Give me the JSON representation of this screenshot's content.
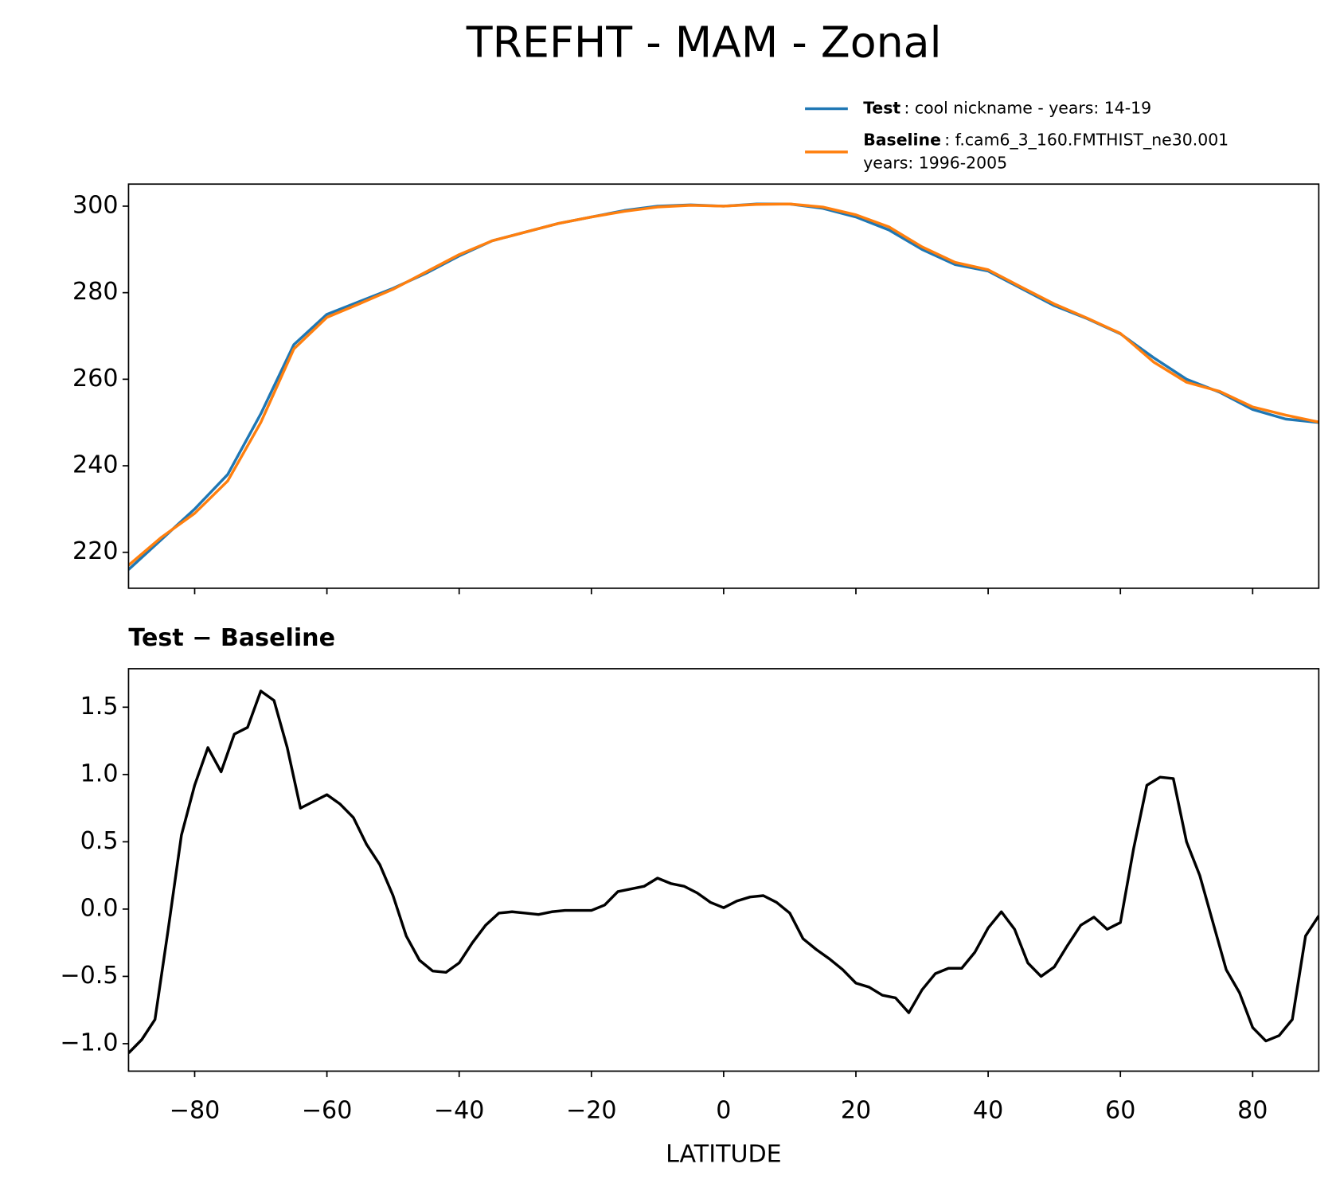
{
  "title": "TREFHT - MAM - Zonal",
  "chart_data": [
    {
      "type": "line",
      "x": [
        -90,
        -85,
        -80,
        -75,
        -70,
        -65,
        -60,
        -55,
        -50,
        -45,
        -40,
        -35,
        -30,
        -25,
        -20,
        -15,
        -10,
        -5,
        0,
        5,
        10,
        15,
        20,
        25,
        30,
        35,
        40,
        45,
        50,
        55,
        60,
        65,
        70,
        75,
        80,
        85,
        90
      ],
      "series": [
        {
          "name": "Test",
          "description": [
            ": cool nickname - years: 14-19"
          ],
          "color": "#1f77b4",
          "values": [
            216,
            223,
            230,
            238,
            252,
            268,
            275,
            278,
            281,
            284.5,
            288.5,
            292,
            294,
            296,
            297.5,
            299,
            300,
            300.3,
            300,
            300.5,
            300.5,
            299.5,
            297.5,
            294.5,
            290,
            286.5,
            285,
            281,
            277,
            274,
            270.5,
            265,
            260,
            257,
            253,
            250.8,
            250
          ]
        },
        {
          "name": "Baseline",
          "description": [
            ": f.cam6_3_160.FMTHIST_ne30.001",
            "years: 1996-2005"
          ],
          "color": "#ff7f0e",
          "values": [
            217,
            223.5,
            229,
            236.5,
            250,
            267,
            274.3,
            277.5,
            280.8,
            284.8,
            288.8,
            292,
            294,
            296,
            297.5,
            298.8,
            299.8,
            300.2,
            300,
            300.4,
            300.5,
            299.8,
            298,
            295.2,
            290.6,
            287,
            285.3,
            281.3,
            277.4,
            274.1,
            270.6,
            264,
            259.3,
            257.2,
            253.6,
            251.7,
            250.1
          ]
        }
      ],
      "xlim": [
        -90,
        90
      ],
      "xticks": [
        -80,
        -60,
        -40,
        -20,
        0,
        20,
        40,
        60,
        80
      ],
      "ylim": [
        211.7,
        305.1
      ],
      "yticks": [
        220,
        240,
        260,
        280,
        300
      ]
    },
    {
      "type": "line",
      "title": "Test − Baseline",
      "xlabel": "LATITUDE",
      "x": [
        -90,
        -88,
        -86,
        -84,
        -82,
        -80,
        -78,
        -76,
        -74,
        -72,
        -70,
        -68,
        -66,
        -64,
        -62,
        -60,
        -58,
        -56,
        -54,
        -52,
        -50,
        -48,
        -46,
        -44,
        -42,
        -40,
        -38,
        -36,
        -34,
        -32,
        -30,
        -28,
        -26,
        -24,
        -22,
        -20,
        -18,
        -16,
        -14,
        -12,
        -10,
        -8,
        -6,
        -4,
        -2,
        0,
        2,
        4,
        6,
        8,
        10,
        12,
        14,
        16,
        18,
        20,
        22,
        24,
        26,
        28,
        30,
        32,
        34,
        36,
        38,
        40,
        42,
        44,
        46,
        48,
        50,
        52,
        54,
        56,
        58,
        60,
        62,
        64,
        66,
        68,
        70,
        72,
        74,
        76,
        78,
        80,
        82,
        84,
        86,
        88,
        90
      ],
      "series": [
        {
          "name": "Test − Baseline",
          "color": "#000000",
          "values": [
            -1.07,
            -0.97,
            -0.82,
            -0.15,
            0.55,
            0.92,
            1.2,
            1.02,
            1.3,
            1.35,
            1.62,
            1.55,
            1.2,
            0.75,
            0.8,
            0.85,
            0.78,
            0.68,
            0.48,
            0.33,
            0.1,
            -0.2,
            -0.38,
            -0.46,
            -0.47,
            -0.4,
            -0.25,
            -0.12,
            -0.03,
            -0.02,
            -0.03,
            -0.04,
            -0.02,
            -0.01,
            -0.01,
            -0.01,
            0.03,
            0.13,
            0.15,
            0.17,
            0.23,
            0.19,
            0.17,
            0.12,
            0.05,
            0.01,
            0.06,
            0.09,
            0.1,
            0.05,
            -0.03,
            -0.22,
            -0.3,
            -0.37,
            -0.45,
            -0.55,
            -0.58,
            -0.64,
            -0.66,
            -0.77,
            -0.6,
            -0.48,
            -0.44,
            -0.44,
            -0.32,
            -0.14,
            -0.02,
            -0.15,
            -0.4,
            -0.5,
            -0.43,
            -0.27,
            -0.12,
            -0.06,
            -0.15,
            -0.1,
            0.45,
            0.92,
            0.98,
            0.97,
            0.5,
            0.25,
            -0.1,
            -0.45,
            -0.62,
            -0.88,
            -0.98,
            -0.94,
            -0.82,
            -0.2,
            -0.05
          ]
        }
      ],
      "xlim": [
        -90,
        90
      ],
      "xticks": [
        {
          "value": -80,
          "label": "−80"
        },
        {
          "value": -60,
          "label": "−60"
        },
        {
          "value": -40,
          "label": "−40"
        },
        {
          "value": -20,
          "label": "−20"
        },
        0,
        20,
        40,
        60,
        80
      ],
      "ylim": [
        -1.204,
        1.786
      ],
      "yticks": [
        {
          "value": -1,
          "label": "−1.0"
        },
        {
          "value": -0.5,
          "label": "−0.5"
        },
        {
          "value": 0,
          "label": "0.0"
        },
        0.5,
        {
          "value": 1,
          "label": "1.0"
        },
        1.5
      ]
    }
  ]
}
